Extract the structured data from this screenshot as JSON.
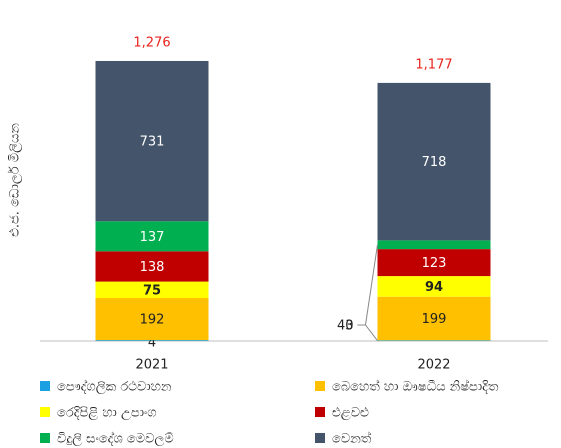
{
  "chart_data": {
    "type": "stacked_bar",
    "y_axis_label": "එ.ජ. ඩොලර් මිලියන",
    "categories": [
      "2021",
      "2022"
    ],
    "ylim": [
      0,
      1400
    ],
    "totals": {
      "values": [
        1276,
        1177
      ],
      "value_labels": [
        "1,276",
        "1,177"
      ],
      "color": "#e8231c"
    },
    "series": [
      {
        "name": "පෞද්ගලික රථවාහන",
        "color": "#1ba1e2",
        "values": [
          4,
          3
        ]
      },
      {
        "name": "බෙහෙත් හා ඖෂධීය නිෂ්පාදිත",
        "color": "#ffc000",
        "values": [
          192,
          199
        ]
      },
      {
        "name": "රෙදිපිළි හා උපාංග",
        "color": "#ffff00",
        "values": [
          75,
          94
        ]
      },
      {
        "name": "එළවළු",
        "color": "#c00000",
        "values": [
          138,
          123
        ]
      },
      {
        "name": "විදුලි සංදේශ මෙවලම්",
        "color": "#00b050",
        "values": [
          137,
          40
        ]
      },
      {
        "name": "වෙනත්",
        "color": "#44546a",
        "values": [
          731,
          718
        ]
      }
    ]
  }
}
